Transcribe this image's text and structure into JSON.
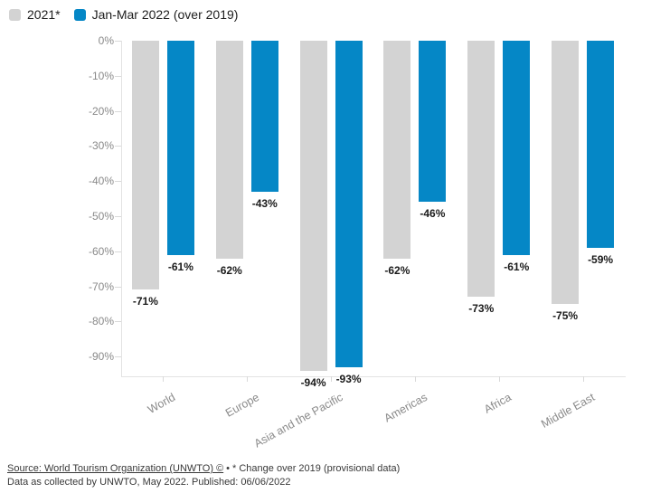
{
  "chart_data": {
    "type": "bar",
    "title": "",
    "categories": [
      "World",
      "Europe",
      "Asia and the Pacific",
      "Americas",
      "Africa",
      "Middle East"
    ],
    "series": [
      {
        "name": "2021*",
        "color": "#d3d3d3",
        "values": [
          -71,
          -62,
          -94,
          -62,
          -73,
          -75
        ]
      },
      {
        "name": "Jan-Mar 2022 (over 2019)",
        "color": "#0587c6",
        "values": [
          -61,
          -43,
          -93,
          -46,
          -61,
          -59
        ]
      }
    ],
    "xlabel": "",
    "ylabel": "",
    "ylim": [
      -95.5,
      0
    ],
    "yticks": [
      0,
      -10,
      -20,
      -30,
      -40,
      -50,
      -60,
      -70,
      -80,
      -90
    ],
    "ytick_suffix": "%",
    "value_label_suffix": "%",
    "grid": false,
    "legend_position": "top-left",
    "value_labels": true
  },
  "colors": {
    "axis_text": "#898989",
    "value_label_text": "#1a1a1a",
    "axis_line": "#e3e3e3"
  },
  "footer": {
    "source": "Source: World Tourism Organization (UNWTO) ©",
    "separator": "•",
    "note": "* Change over 2019 (provisional data)",
    "line2": "Data as collected by UNWTO, May 2022. Published: 06/06/2022"
  }
}
